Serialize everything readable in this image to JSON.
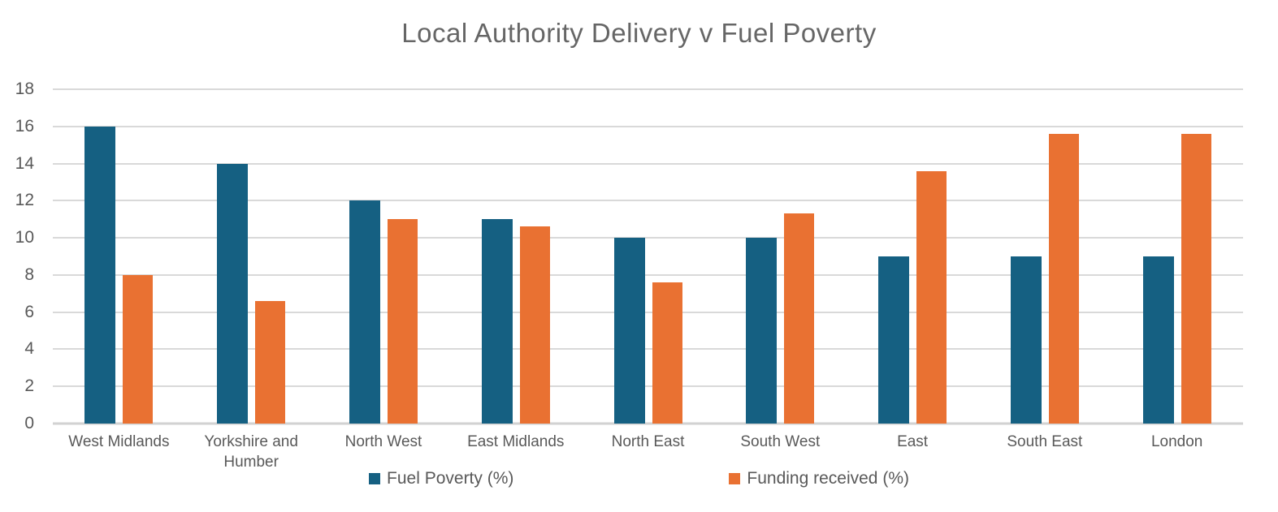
{
  "title": "Local Authority Delivery v Fuel Poverty",
  "colors": {
    "fuel_poverty": "#156082",
    "funding_received": "#E97132",
    "gridline": "#D9D9D9",
    "axis_text": "#595959",
    "title_text": "#666666",
    "background": "#FFFFFF"
  },
  "chart_data": {
    "type": "bar",
    "title": "Local Authority Delivery v Fuel Poverty",
    "xlabel": "",
    "ylabel": "",
    "ylim": [
      0,
      18
    ],
    "ytick_interval": 2,
    "ytick_labels": [
      "0",
      "2",
      "4",
      "6",
      "8",
      "10",
      "12",
      "14",
      "16",
      "18"
    ],
    "grid": true,
    "legend_position": "bottom",
    "categories": [
      "West Midlands",
      "Yorkshire and Humber",
      "North West",
      "East Midlands",
      "North East",
      "South West",
      "East",
      "South East",
      "London"
    ],
    "category_display": [
      "West Midlands",
      "Yorkshire and\nHumber",
      "North West",
      "East Midlands",
      "North East",
      "South West",
      "East",
      "South East",
      "London"
    ],
    "series": [
      {
        "name": "Fuel Poverty (%)",
        "color": "#156082",
        "values": [
          16,
          14,
          12,
          11,
          10,
          10,
          9,
          9,
          9
        ]
      },
      {
        "name": "Funding received (%)",
        "color": "#E97132",
        "values": [
          8,
          6.6,
          11,
          10.6,
          7.6,
          11.3,
          13.6,
          15.6,
          15.6
        ]
      }
    ]
  },
  "legend": {
    "items": [
      {
        "label": "Fuel Poverty (%)",
        "color": "#156082"
      },
      {
        "label": "Funding received (%)",
        "color": "#E97132"
      }
    ]
  }
}
